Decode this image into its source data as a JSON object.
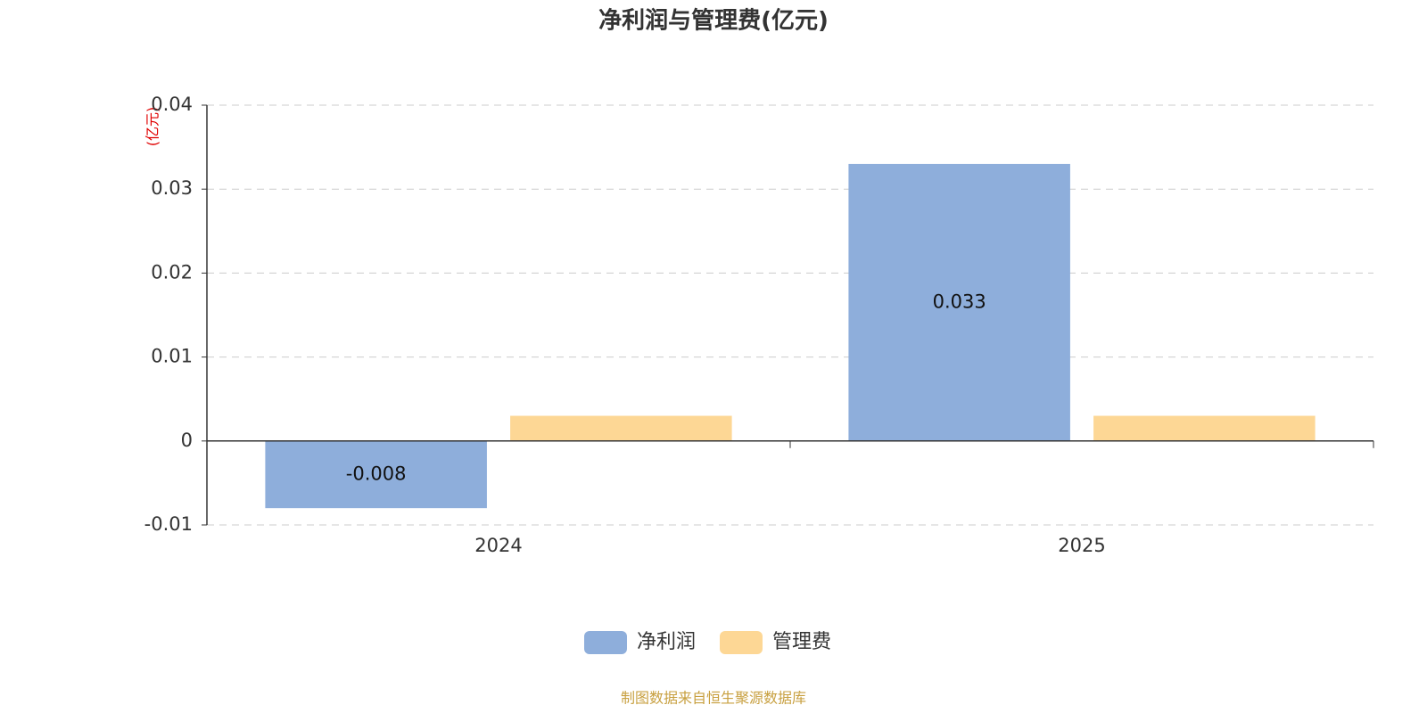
{
  "chart_data": {
    "type": "bar",
    "title": "净利润与管理费(亿元)",
    "y_unit_label": "(亿元)",
    "categories": [
      "2024",
      "2025"
    ],
    "series": [
      {
        "name": "净利润",
        "color": "#8eaedb",
        "values": [
          -0.008,
          0.033
        ],
        "show_labels": true
      },
      {
        "name": "管理费",
        "color": "#fdd795",
        "values": [
          0.003,
          0.003
        ],
        "show_labels": false
      }
    ],
    "ylim": [
      -0.01,
      0.04
    ],
    "yticks": [
      -0.01,
      0,
      0.01,
      0.02,
      0.03,
      0.04
    ],
    "grid": true,
    "legend": "bottom",
    "source": "制图数据来自恒生聚源数据库"
  }
}
